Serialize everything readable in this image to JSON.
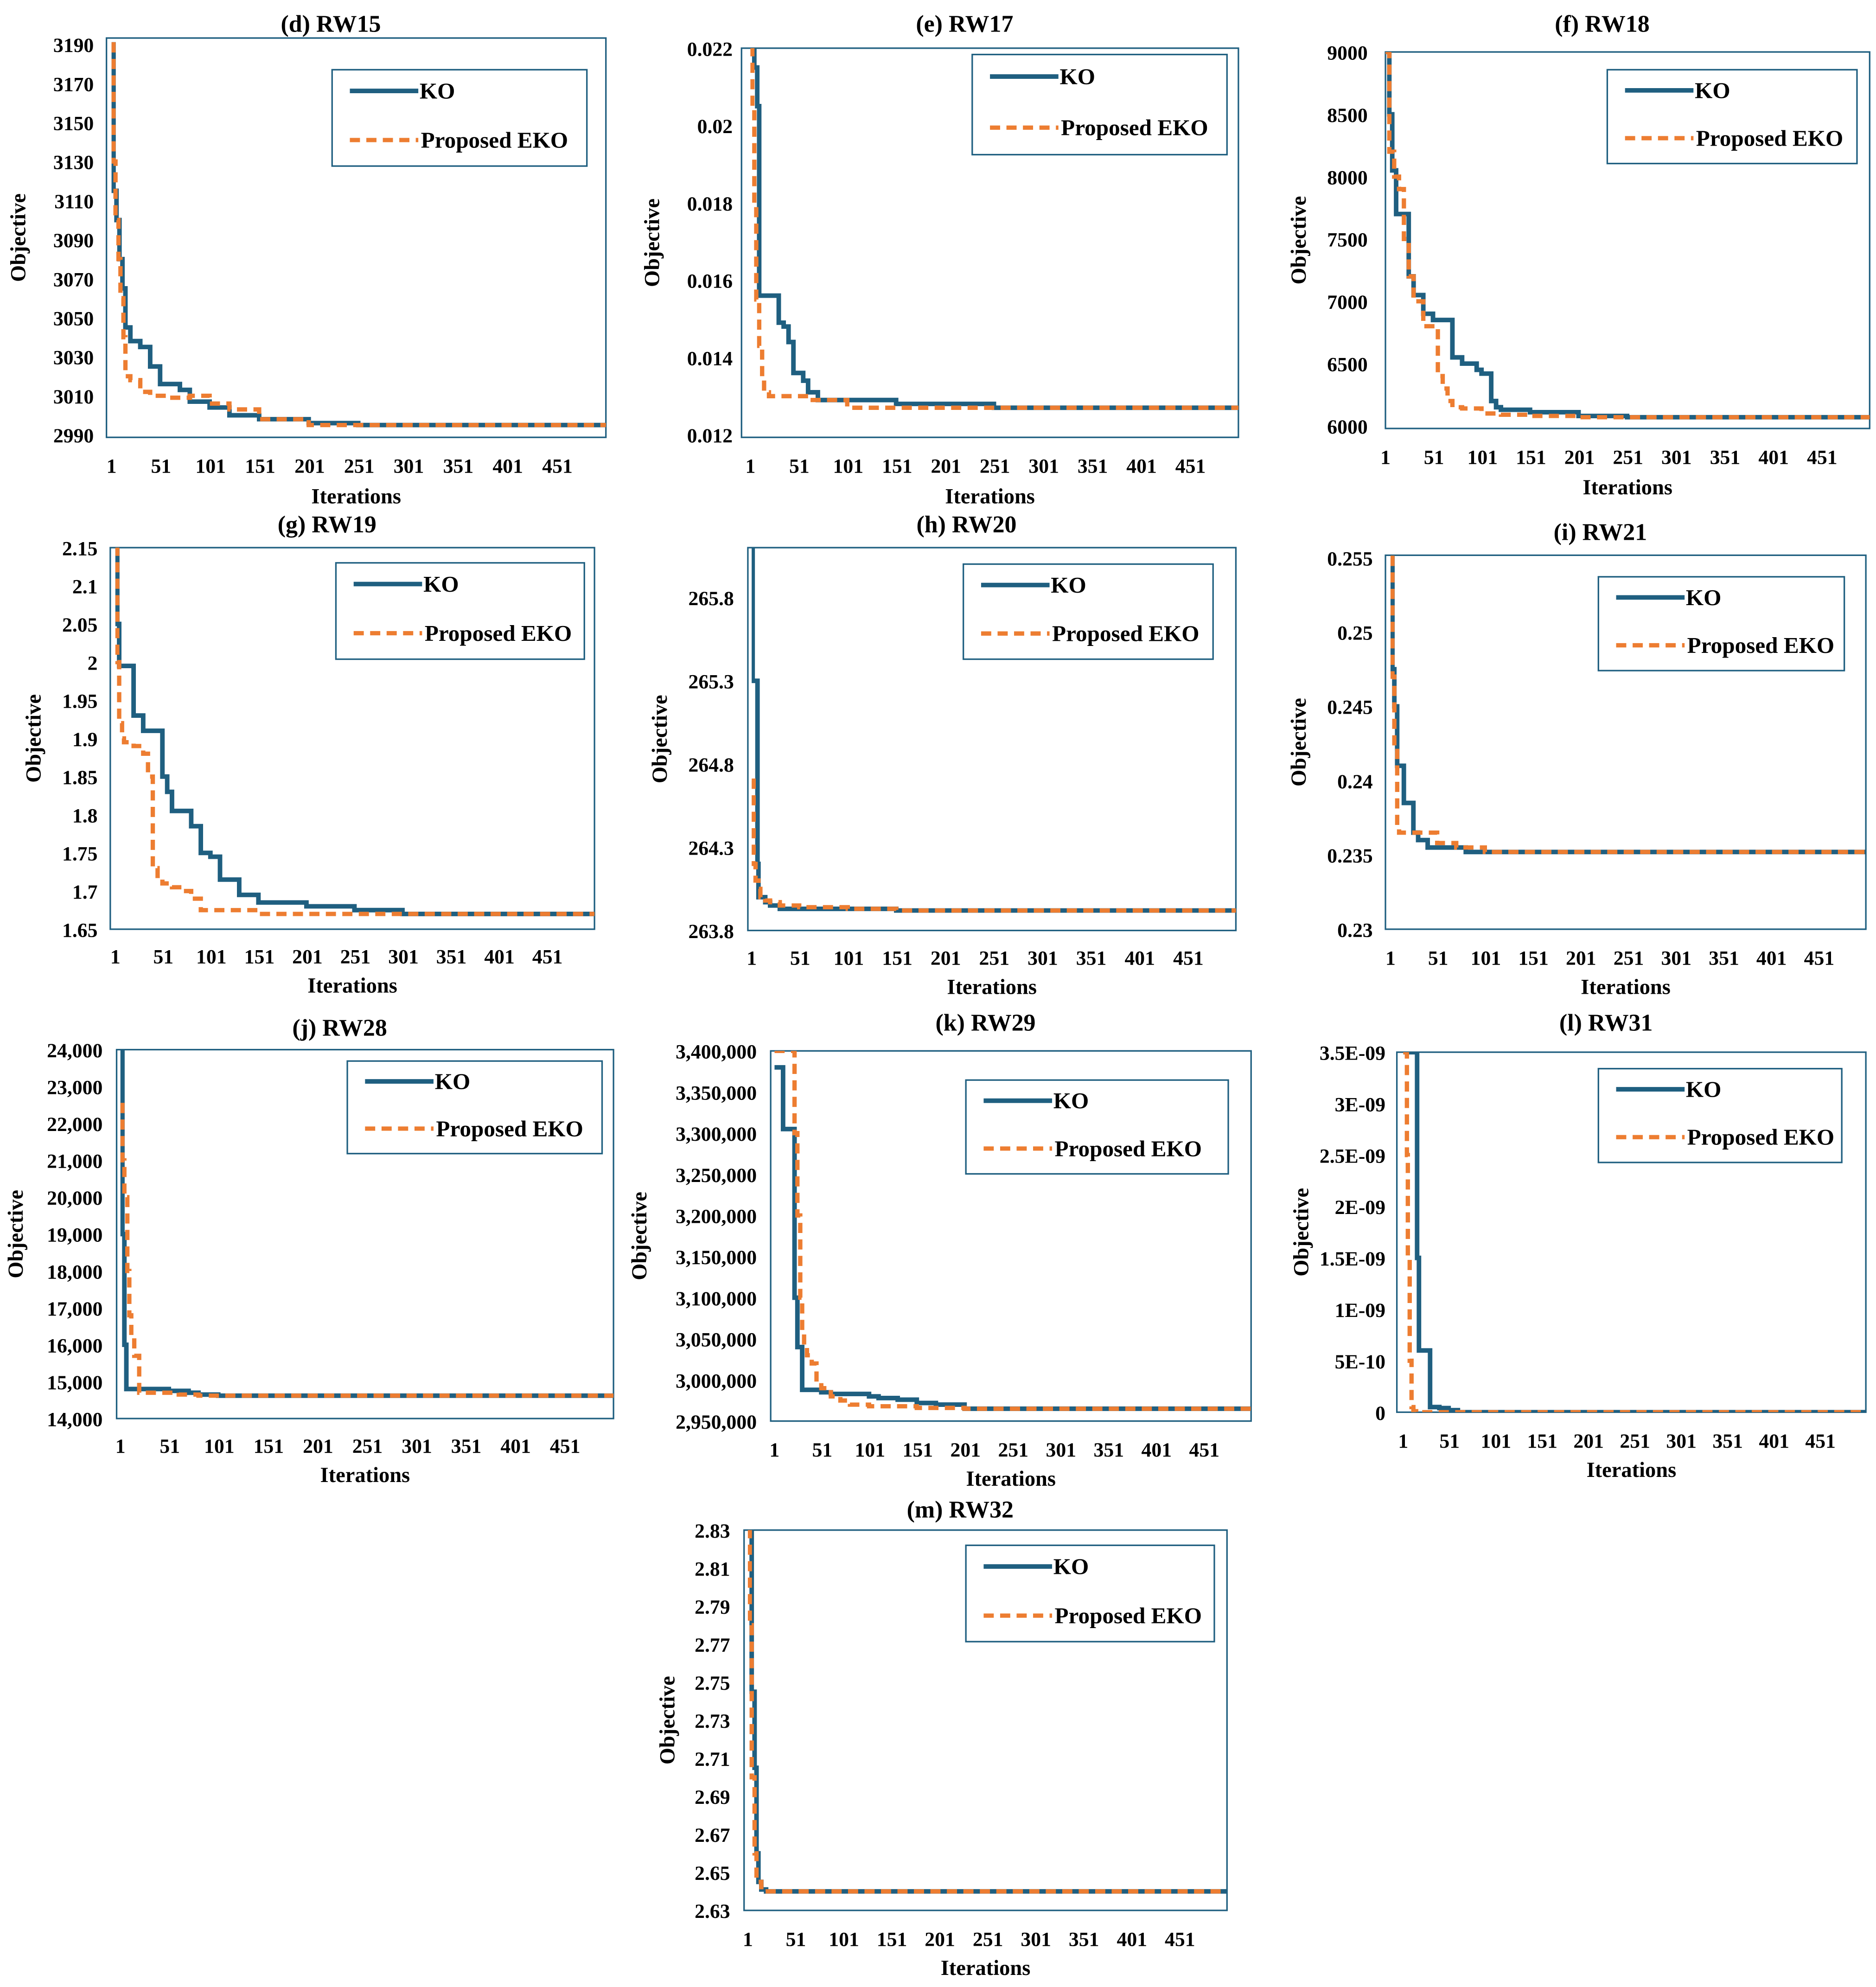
{
  "colors": {
    "ko": "#1f5f80",
    "eko": "#ed7d31",
    "frame": "#1f5f80"
  },
  "legend": {
    "ko": "KO",
    "eko": "Proposed EKO"
  },
  "chart_data": [
    {
      "type": "line",
      "title": "(d) RW15",
      "xlabel": "Iterations",
      "ylabel": "Objective",
      "xlim": [
        1,
        500
      ],
      "x_ticks": [
        "1",
        "51",
        "101",
        "151",
        "201",
        "251",
        "301",
        "351",
        "401",
        "451"
      ],
      "ylim": [
        2990,
        3190
      ],
      "y_ticks": [
        "2990",
        "3010",
        "3030",
        "3050",
        "3070",
        "3090",
        "3110",
        "3130",
        "3150",
        "3170",
        "3190"
      ],
      "series": [
        {
          "name": "KO",
          "x": [
            1,
            3,
            6,
            9,
            12,
            15,
            20,
            30,
            40,
            50,
            70,
            80,
            100,
            120,
            150,
            200,
            250,
            300,
            500
          ],
          "y": [
            3190,
            3115,
            3100,
            3080,
            3065,
            3045,
            3038,
            3035,
            3025,
            3016,
            3013,
            3007,
            3004,
            3000,
            2998,
            2996,
            2995,
            2995,
            2995
          ]
        },
        {
          "name": "Proposed EKO",
          "x": [
            1,
            3,
            5,
            8,
            10,
            13,
            15,
            20,
            30,
            40,
            60,
            80,
            100,
            120,
            150,
            200,
            250,
            500
          ],
          "y": [
            3190,
            3130,
            3100,
            3080,
            3060,
            3040,
            3020,
            3018,
            3012,
            3010,
            3009,
            3010,
            3006,
            3003,
            2998,
            2995,
            2995,
            2995
          ]
        }
      ]
    },
    {
      "type": "line",
      "title": "(e) RW17",
      "xlabel": "Iterations",
      "ylabel": "Objective",
      "xlim": [
        1,
        500
      ],
      "x_ticks": [
        "1",
        "51",
        "101",
        "151",
        "201",
        "251",
        "301",
        "351",
        "401",
        "451"
      ],
      "ylim": [
        0.012,
        0.022
      ],
      "y_ticks": [
        "0.012",
        "0.014",
        "0.016",
        "0.018",
        "0.02",
        "0.022"
      ],
      "series": [
        {
          "name": "KO",
          "x": [
            1,
            5,
            8,
            10,
            15,
            30,
            35,
            40,
            45,
            55,
            60,
            70,
            100,
            150,
            200,
            250,
            500
          ],
          "y": [
            0.022,
            0.0215,
            0.0205,
            0.0156,
            0.0156,
            0.0149,
            0.0148,
            0.0144,
            0.0136,
            0.0134,
            0.0131,
            0.0129,
            0.0129,
            0.0128,
            0.0128,
            0.0127,
            0.0127
          ]
        },
        {
          "name": "Proposed EKO",
          "x": [
            1,
            3,
            5,
            7,
            10,
            13,
            15,
            20,
            40,
            60,
            100,
            150,
            200,
            500
          ],
          "y": [
            0.022,
            0.0205,
            0.018,
            0.0155,
            0.0143,
            0.0135,
            0.0131,
            0.013,
            0.013,
            0.0129,
            0.0127,
            0.0127,
            0.0127,
            0.0127
          ]
        }
      ]
    },
    {
      "type": "line",
      "title": "(f) RW18",
      "xlabel": "Iterations",
      "ylabel": "Objective",
      "xlim": [
        1,
        500
      ],
      "x_ticks": [
        "1",
        "51",
        "101",
        "151",
        "201",
        "251",
        "301",
        "351",
        "401",
        "451"
      ],
      "ylim": [
        6000,
        9000
      ],
      "y_ticks": [
        "6000",
        "6500",
        "7000",
        "7500",
        "8000",
        "8500",
        "9000"
      ],
      "series": [
        {
          "name": "KO",
          "x": [
            1,
            5,
            8,
            12,
            20,
            25,
            30,
            40,
            50,
            70,
            80,
            95,
            100,
            110,
            115,
            120,
            150,
            200,
            250,
            500
          ],
          "y": [
            9000,
            8500,
            8050,
            7700,
            7700,
            7200,
            7050,
            6900,
            6850,
            6550,
            6500,
            6450,
            6420,
            6200,
            6150,
            6130,
            6110,
            6080,
            6070,
            6070
          ]
        },
        {
          "name": "Proposed EKO",
          "x": [
            1,
            5,
            10,
            15,
            20,
            25,
            30,
            40,
            50,
            55,
            60,
            65,
            70,
            80,
            100,
            120,
            150,
            200,
            250,
            500
          ],
          "y": [
            9000,
            8200,
            8000,
            7900,
            7500,
            7200,
            7000,
            6800,
            6800,
            6400,
            6300,
            6200,
            6150,
            6140,
            6100,
            6090,
            6080,
            6070,
            6070,
            6070
          ]
        }
      ]
    },
    {
      "type": "line",
      "title": "(g) RW19",
      "xlabel": "Iterations",
      "ylabel": "Objective",
      "xlim": [
        1,
        500
      ],
      "x_ticks": [
        "1",
        "51",
        "101",
        "151",
        "201",
        "251",
        "301",
        "351",
        "401",
        "451"
      ],
      "ylim": [
        1.65,
        2.15
      ],
      "y_ticks": [
        "1.65",
        "1.7",
        "1.75",
        "1.8",
        "1.85",
        "1.9",
        "1.95",
        "2",
        "2.05",
        "2.1",
        "2.15"
      ],
      "series": [
        {
          "name": "KO",
          "x": [
            1,
            3,
            5,
            10,
            20,
            30,
            40,
            50,
            55,
            60,
            70,
            80,
            90,
            95,
            100,
            110,
            120,
            130,
            150,
            200,
            250,
            300,
            500
          ],
          "y": [
            2.15,
            2.05,
            1.995,
            1.995,
            1.93,
            1.91,
            1.91,
            1.85,
            1.83,
            1.805,
            1.805,
            1.785,
            1.75,
            1.75,
            1.745,
            1.715,
            1.715,
            1.695,
            1.685,
            1.68,
            1.675,
            1.67,
            1.67
          ]
        },
        {
          "name": "Proposed EKO",
          "x": [
            1,
            3,
            5,
            8,
            10,
            20,
            30,
            35,
            40,
            45,
            50,
            60,
            70,
            80,
            90,
            100,
            150,
            200,
            500
          ],
          "y": [
            2.15,
            2.0,
            1.92,
            1.9,
            1.895,
            1.89,
            1.88,
            1.85,
            1.73,
            1.715,
            1.71,
            1.705,
            1.7,
            1.69,
            1.675,
            1.675,
            1.67,
            1.67,
            1.67
          ]
        }
      ]
    },
    {
      "type": "line",
      "title": "(h) RW20",
      "xlabel": "Iterations",
      "ylabel": "Objective",
      "xlim": [
        1,
        500
      ],
      "x_ticks": [
        "1",
        "51",
        "101",
        "151",
        "201",
        "251",
        "301",
        "351",
        "401",
        "451"
      ],
      "ylim": [
        263.8,
        266.1
      ],
      "y_ticks": [
        "263.8",
        "264.3",
        "264.8",
        "265.3",
        "265.8"
      ],
      "series": [
        {
          "name": "KO",
          "x": [
            1,
            2,
            5,
            7,
            8,
            10,
            15,
            20,
            30,
            50,
            100,
            150,
            200,
            500
          ],
          "y": [
            266.1,
            265.3,
            265.3,
            264.2,
            264.0,
            264.0,
            263.97,
            263.95,
            263.93,
            263.93,
            263.93,
            263.92,
            263.92,
            263.92
          ]
        },
        {
          "name": "Proposed EKO",
          "x": [
            1,
            3,
            5,
            8,
            10,
            15,
            20,
            30,
            50,
            100,
            150,
            200,
            500
          ],
          "y": [
            264.7,
            264.2,
            264.1,
            264.05,
            264.0,
            263.98,
            263.97,
            263.95,
            263.94,
            263.93,
            263.92,
            263.92,
            263.92
          ]
        }
      ]
    },
    {
      "type": "line",
      "title": "(i) RW21",
      "xlabel": "Iterations",
      "ylabel": "Objective",
      "xlim": [
        1,
        500
      ],
      "x_ticks": [
        "1",
        "51",
        "101",
        "151",
        "201",
        "251",
        "301",
        "351",
        "401",
        "451"
      ],
      "ylim": [
        0.23,
        0.255
      ],
      "y_ticks": [
        "0.23",
        "0.235",
        "0.24",
        "0.245",
        "0.25",
        "0.255"
      ],
      "series": [
        {
          "name": "KO",
          "x": [
            1,
            3,
            5,
            8,
            10,
            15,
            20,
            25,
            30,
            40,
            60,
            80,
            100,
            500
          ],
          "y": [
            0.255,
            0.2475,
            0.245,
            0.241,
            0.241,
            0.2385,
            0.2385,
            0.2365,
            0.236,
            0.2355,
            0.2355,
            0.2352,
            0.2352,
            0.2352
          ]
        },
        {
          "name": "Proposed EKO",
          "x": [
            1,
            3,
            5,
            8,
            10,
            15,
            20,
            30,
            50,
            70,
            100,
            500
          ],
          "y": [
            0.255,
            0.247,
            0.242,
            0.237,
            0.2365,
            0.2365,
            0.2365,
            0.2365,
            0.2358,
            0.2355,
            0.2352,
            0.2352
          ]
        }
      ]
    },
    {
      "type": "line",
      "title": "(j) RW28",
      "xlabel": "Iterations",
      "ylabel": "Objective",
      "xlim": [
        1,
        500
      ],
      "x_ticks": [
        "1",
        "51",
        "101",
        "151",
        "201",
        "251",
        "301",
        "351",
        "401",
        "451"
      ],
      "ylim": [
        14000,
        24000
      ],
      "y_ticks": [
        "14,000",
        "15,000",
        "16,000",
        "17,000",
        "18,000",
        "19,000",
        "20,000",
        "21,000",
        "22,000",
        "23,000",
        "24,000"
      ],
      "series": [
        {
          "name": "KO",
          "x": [
            1,
            3,
            5,
            7,
            10,
            50,
            60,
            70,
            80,
            100,
            200,
            500
          ],
          "y": [
            24000,
            19000,
            16000,
            14800,
            14800,
            14750,
            14750,
            14700,
            14650,
            14620,
            14620,
            14620
          ]
        },
        {
          "name": "Proposed EKO",
          "x": [
            1,
            3,
            5,
            8,
            10,
            12,
            15,
            20,
            40,
            60,
            80,
            100,
            500
          ],
          "y": [
            22500,
            21000,
            20000,
            18000,
            16800,
            16200,
            15700,
            14700,
            14700,
            14650,
            14620,
            14620,
            14620
          ]
        }
      ]
    },
    {
      "type": "line",
      "title": "(k) RW29",
      "xlabel": "Iterations",
      "ylabel": "Objective",
      "xlim": [
        1,
        500
      ],
      "x_ticks": [
        "1",
        "51",
        "101",
        "151",
        "201",
        "251",
        "301",
        "351",
        "401",
        "451"
      ],
      "ylim": [
        2950000,
        3400000
      ],
      "y_ticks": [
        "2,950,000",
        "3,000,000",
        "3,050,000",
        "3,100,000",
        "3,150,000",
        "3,200,000",
        "3,250,000",
        "3,300,000",
        "3,350,000",
        "3,400,000"
      ],
      "series": [
        {
          "name": "KO",
          "x": [
            1,
            5,
            10,
            20,
            22,
            25,
            30,
            40,
            50,
            60,
            80,
            100,
            110,
            130,
            150,
            170,
            200,
            300,
            500
          ],
          "y": [
            3380000,
            3380000,
            3305000,
            3305000,
            3100000,
            3040000,
            2988000,
            2988000,
            2985000,
            2983000,
            2983000,
            2980000,
            2978000,
            2976000,
            2972000,
            2970000,
            2965000,
            2965000,
            2965000
          ]
        },
        {
          "name": "Proposed EKO",
          "x": [
            1,
            15,
            20,
            22,
            25,
            28,
            30,
            32,
            35,
            40,
            45,
            50,
            60,
            70,
            80,
            100,
            150,
            200,
            500
          ],
          "y": [
            3400000,
            3400000,
            3400000,
            3300000,
            3200000,
            3100000,
            3060000,
            3040000,
            3030000,
            3020000,
            2998000,
            2990000,
            2980000,
            2975000,
            2970000,
            2968000,
            2966000,
            2965000,
            2965000
          ]
        }
      ]
    },
    {
      "type": "line",
      "title": "(l) RW31",
      "xlabel": "Iterations",
      "ylabel": "Objective",
      "xlim": [
        1,
        500
      ],
      "x_ticks": [
        "1",
        "51",
        "101",
        "151",
        "201",
        "251",
        "301",
        "351",
        "401",
        "451"
      ],
      "ylim": [
        0,
        3.5e-09
      ],
      "y_ticks": [
        "0",
        "5E-10",
        "1E-09",
        "1.5E-09",
        "2E-09",
        "2.5E-09",
        "3E-09",
        "3.5E-09"
      ],
      "series": [
        {
          "name": "KO",
          "x": [
            1,
            10,
            14,
            16,
            18,
            25,
            28,
            30,
            32,
            40,
            50,
            60,
            500
          ],
          "y": [
            3.5e-09,
            3.5e-09,
            3.5e-09,
            1.5e-09,
            6e-10,
            6e-10,
            6e-10,
            5e-11,
            5e-11,
            4e-11,
            2e-11,
            0,
            0
          ]
        },
        {
          "name": "Proposed EKO",
          "x": [
            1,
            3,
            5,
            6,
            8,
            10,
            12,
            15,
            20,
            30,
            500
          ],
          "y": [
            3.5e-09,
            3.5e-09,
            2.5e-09,
            1.5e-09,
            5e-10,
            5e-11,
            1e-11,
            0,
            0,
            0,
            0
          ]
        }
      ]
    },
    {
      "type": "line",
      "title": "(m) RW32",
      "xlabel": "Iterations",
      "ylabel": "Objective",
      "xlim": [
        1,
        500
      ],
      "x_ticks": [
        "1",
        "51",
        "101",
        "151",
        "201",
        "251",
        "301",
        "351",
        "401",
        "451"
      ],
      "ylim": [
        2.63,
        2.83
      ],
      "y_ticks": [
        "2.63",
        "2.65",
        "2.67",
        "2.69",
        "2.71",
        "2.73",
        "2.75",
        "2.77",
        "2.79",
        "2.81",
        "2.83"
      ],
      "series": [
        {
          "name": "KO",
          "x": [
            1,
            4,
            5,
            7,
            8,
            10,
            12,
            15,
            20,
            500
          ],
          "y": [
            2.83,
            2.83,
            2.745,
            2.745,
            2.705,
            2.66,
            2.645,
            2.641,
            2.64,
            2.64
          ]
        },
        {
          "name": "Proposed EKO",
          "x": [
            1,
            3,
            5,
            8,
            10,
            15,
            500
          ],
          "y": [
            2.83,
            2.78,
            2.7,
            2.66,
            2.645,
            2.64,
            2.64
          ]
        }
      ]
    }
  ]
}
